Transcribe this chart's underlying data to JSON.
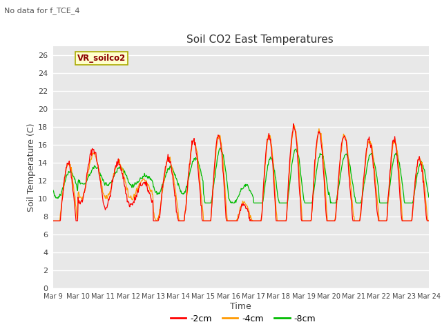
{
  "title": "Soil CO2 East Temperatures",
  "subtitle": "No data for f_TCE_4",
  "xlabel": "Time",
  "ylabel": "Soil Temperature (C)",
  "ylim": [
    0,
    27
  ],
  "yticks": [
    0,
    2,
    4,
    6,
    8,
    10,
    12,
    14,
    16,
    18,
    20,
    22,
    24,
    26
  ],
  "legend_label": "VR_soilco2",
  "series_labels": [
    "-2cm",
    "-4cm",
    "-8cm"
  ],
  "series_colors": [
    "#ff0000",
    "#ff9900",
    "#00bb00"
  ],
  "bg_color": "#e8e8e8",
  "grid_color": "#ffffff",
  "x_ticks": [
    9,
    10,
    11,
    12,
    13,
    14,
    15,
    16,
    17,
    18,
    19,
    20,
    21,
    22,
    23,
    24
  ],
  "base_2cm": [
    9.5,
    12.5,
    11.5,
    10.5,
    10.5,
    11.0,
    10.0,
    7.5,
    9.5,
    10.0,
    10.0,
    11.0,
    11.0,
    9.5,
    9.0
  ],
  "base_4cm": [
    10.0,
    12.5,
    12.0,
    11.0,
    11.0,
    11.5,
    10.5,
    8.0,
    10.0,
    10.5,
    10.5,
    11.5,
    11.5,
    10.0,
    9.5
  ],
  "base_8cm": [
    11.5,
    12.5,
    12.5,
    12.0,
    12.0,
    12.5,
    12.0,
    10.5,
    11.0,
    11.5,
    11.5,
    12.0,
    12.0,
    11.5,
    11.0
  ],
  "amp_2cm": [
    4.5,
    3.0,
    2.5,
    1.2,
    4.0,
    5.5,
    7.0,
    1.8,
    7.5,
    8.0,
    7.5,
    6.0,
    5.5,
    7.0,
    5.5
  ],
  "amp_4cm": [
    4.0,
    2.5,
    2.0,
    1.0,
    3.5,
    5.0,
    6.5,
    1.5,
    7.0,
    7.5,
    7.0,
    5.5,
    5.0,
    6.5,
    5.0
  ],
  "amp_8cm": [
    1.5,
    1.0,
    1.0,
    0.5,
    1.5,
    2.0,
    3.5,
    1.0,
    3.5,
    4.0,
    3.5,
    3.0,
    3.0,
    3.5,
    3.0
  ],
  "phase_2cm": 0.35,
  "phase_4cm": 0.37,
  "phase_8cm": 0.43
}
